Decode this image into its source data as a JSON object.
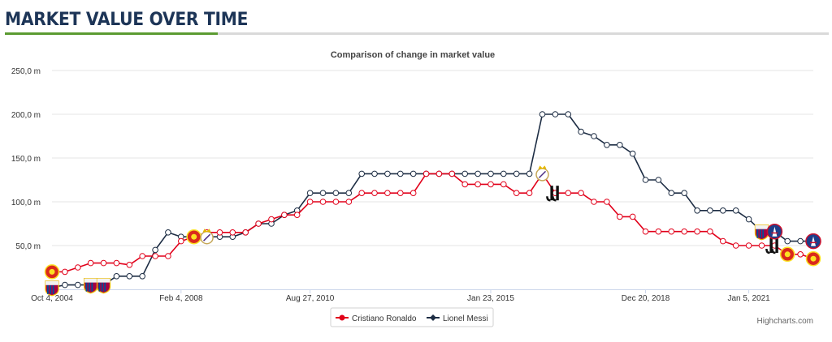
{
  "header": {
    "title": "MARKET VALUE OVER TIME"
  },
  "credits": "Highcharts.com",
  "colors": {
    "ronaldo": "#e1001a",
    "messi": "#1d2d44",
    "accent": "#5b9b31"
  },
  "chart_data": {
    "type": "line",
    "title": "Comparison of change in market value",
    "subtitle": "",
    "xlabel": "",
    "ylabel": "",
    "x_tick_labels": [
      "Oct 4, 2004",
      "Feb 4, 2008",
      "Aug 27, 2010",
      "Jan 23, 2015",
      "Dec 20, 2018",
      "Jan 5, 2021"
    ],
    "y_tick_labels": [
      "50,0 m",
      "100,0 m",
      "150,0 m",
      "200,0 m",
      "250,0 m"
    ],
    "ylim": [
      0,
      250
    ],
    "grid": true,
    "legend_position": "bottom-center",
    "series": [
      {
        "name": "Cristiano Ronaldo",
        "color": "#e1001a",
        "points": [
          [
            2004.0,
            20
          ],
          [
            2004.5,
            20
          ],
          [
            2005.0,
            25
          ],
          [
            2005.5,
            30
          ],
          [
            2006.0,
            30
          ],
          [
            2006.5,
            30
          ],
          [
            2007.0,
            28
          ],
          [
            2007.5,
            38
          ],
          [
            2008.0,
            38
          ],
          [
            2008.5,
            38
          ],
          [
            2009.0,
            55
          ],
          [
            2009.5,
            60
          ],
          [
            2010.0,
            65
          ],
          [
            2010.5,
            65
          ],
          [
            2011.0,
            65
          ],
          [
            2011.5,
            65
          ],
          [
            2012.0,
            75
          ],
          [
            2012.5,
            80
          ],
          [
            2013.0,
            85
          ],
          [
            2013.5,
            85
          ],
          [
            2014.0,
            100
          ],
          [
            2014.5,
            100
          ],
          [
            2015.0,
            100
          ],
          [
            2015.5,
            100
          ],
          [
            2016.0,
            110
          ],
          [
            2016.5,
            110
          ],
          [
            2017.0,
            110
          ],
          [
            2017.5,
            110
          ],
          [
            2018.0,
            110
          ],
          [
            2018.5,
            132
          ],
          [
            2019.0,
            132
          ],
          [
            2019.5,
            132
          ],
          [
            2020.0,
            120
          ],
          [
            2020.5,
            120
          ],
          [
            2021.0,
            120
          ],
          [
            2021.5,
            120
          ],
          [
            2022.0,
            110
          ],
          [
            2022.5,
            110
          ],
          [
            2023.0,
            132
          ],
          [
            2023.5,
            110
          ],
          [
            2024.0,
            110
          ],
          [
            2024.5,
            110
          ],
          [
            2025.0,
            100
          ],
          [
            2025.5,
            100
          ],
          [
            2026.0,
            83
          ],
          [
            2026.5,
            83
          ],
          [
            2027.0,
            66
          ],
          [
            2027.5,
            66
          ],
          [
            2028.0,
            66
          ],
          [
            2028.5,
            66
          ],
          [
            2029.0,
            66
          ],
          [
            2029.5,
            66
          ],
          [
            2030.0,
            55
          ],
          [
            2030.5,
            50
          ],
          [
            2031.0,
            50
          ],
          [
            2031.5,
            50
          ],
          [
            2032.0,
            50
          ],
          [
            2032.5,
            40
          ],
          [
            2033.0,
            40
          ],
          [
            2033.5,
            35
          ]
        ]
      },
      {
        "name": "Lionel Messi",
        "color": "#1d2d44",
        "points": [
          [
            2004.0,
            2
          ],
          [
            2004.5,
            5
          ],
          [
            2005.0,
            5
          ],
          [
            2005.5,
            5
          ],
          [
            2006.0,
            5
          ],
          [
            2006.5,
            15
          ],
          [
            2007.0,
            15
          ],
          [
            2007.5,
            15
          ],
          [
            2008.0,
            45
          ],
          [
            2008.5,
            65
          ],
          [
            2009.0,
            60
          ],
          [
            2009.5,
            60
          ],
          [
            2010.0,
            60
          ],
          [
            2010.5,
            60
          ],
          [
            2011.0,
            60
          ],
          [
            2011.5,
            65
          ],
          [
            2012.0,
            75
          ],
          [
            2012.5,
            75
          ],
          [
            2013.0,
            85
          ],
          [
            2013.5,
            90
          ],
          [
            2014.0,
            110
          ],
          [
            2014.5,
            110
          ],
          [
            2015.0,
            110
          ],
          [
            2015.5,
            110
          ],
          [
            2016.0,
            132
          ],
          [
            2016.5,
            132
          ],
          [
            2017.0,
            132
          ],
          [
            2017.5,
            132
          ],
          [
            2018.0,
            132
          ],
          [
            2018.5,
            132
          ],
          [
            2019.0,
            132
          ],
          [
            2019.5,
            132
          ],
          [
            2020.0,
            132
          ],
          [
            2020.5,
            132
          ],
          [
            2021.0,
            132
          ],
          [
            2021.5,
            132
          ],
          [
            2022.0,
            132
          ],
          [
            2022.5,
            132
          ],
          [
            2023.0,
            200
          ],
          [
            2023.5,
            200
          ],
          [
            2024.0,
            200
          ],
          [
            2024.5,
            180
          ],
          [
            2025.0,
            175
          ],
          [
            2025.5,
            165
          ],
          [
            2026.0,
            165
          ],
          [
            2026.5,
            155
          ],
          [
            2027.0,
            125
          ],
          [
            2027.5,
            125
          ],
          [
            2028.0,
            110
          ],
          [
            2028.5,
            110
          ],
          [
            2029.0,
            90
          ],
          [
            2029.5,
            90
          ],
          [
            2030.0,
            90
          ],
          [
            2030.5,
            90
          ],
          [
            2031.0,
            80
          ],
          [
            2031.5,
            66
          ],
          [
            2032.0,
            66
          ],
          [
            2032.5,
            55
          ],
          [
            2033.0,
            55
          ],
          [
            2033.5,
            55
          ]
        ]
      }
    ],
    "club_markers": [
      {
        "series": "Cristiano Ronaldo",
        "index": 0,
        "club": "manchester-united"
      },
      {
        "series": "Cristiano Ronaldo",
        "index": 11,
        "club": "manchester-united"
      },
      {
        "series": "Cristiano Ronaldo",
        "index": 38,
        "club": "real-madrid"
      },
      {
        "series": "Cristiano Ronaldo",
        "index": 39,
        "club": "juventus"
      },
      {
        "series": "Cristiano Ronaldo",
        "index": 56,
        "club": "juventus"
      },
      {
        "series": "Cristiano Ronaldo",
        "index": 57,
        "club": "manchester-united"
      },
      {
        "series": "Cristiano Ronaldo",
        "index": 59,
        "club": "manchester-united"
      },
      {
        "series": "Lionel Messi",
        "index": 0,
        "club": "barcelona"
      },
      {
        "series": "Lionel Messi",
        "index": 3,
        "club": "barcelona"
      },
      {
        "series": "Lionel Messi",
        "index": 4,
        "club": "barcelona"
      },
      {
        "series": "Lionel Messi",
        "index": 12,
        "club": "real-madrid"
      },
      {
        "series": "Lionel Messi",
        "index": 55,
        "club": "barcelona"
      },
      {
        "series": "Lionel Messi",
        "index": 56,
        "club": "psg"
      },
      {
        "series": "Lionel Messi",
        "index": 59,
        "club": "psg"
      }
    ]
  }
}
